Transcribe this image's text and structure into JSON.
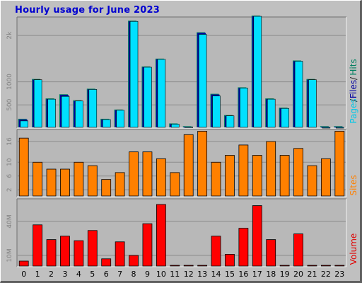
{
  "title": "Hourly usage for June 2023",
  "colors": {
    "background": "#c0c0c0",
    "plot": "#b8b8b8",
    "grid": "#8c8c8c",
    "title": "#0000d0",
    "pages": "#00e0ff",
    "files": "#0000a0",
    "hits": "#008060",
    "sites": "#ff8000",
    "volume": "#ff0000"
  },
  "legend": {
    "pages": "Pages",
    "files": "Files",
    "hits": "Hits",
    "sites": "Sites",
    "volume": "Volume",
    "slash": "/"
  },
  "chart_data": [
    {
      "type": "bar",
      "name": "hits-files-pages",
      "categories": [
        "0",
        "1",
        "2",
        "3",
        "4",
        "5",
        "6",
        "7",
        "8",
        "9",
        "10",
        "11",
        "12",
        "13",
        "14",
        "15",
        "16",
        "17",
        "18",
        "19",
        "20",
        "21",
        "22",
        "23"
      ],
      "ylim": [
        0,
        2400
      ],
      "yticks": [
        {
          "value": 500,
          "label": "500"
        },
        {
          "value": 1000,
          "label": "1000"
        },
        {
          "value": 2000,
          "label": "2k"
        }
      ],
      "series": [
        {
          "name": "Hits",
          "values": [
            200,
            1060,
            640,
            730,
            600,
            850,
            200,
            400,
            2320,
            1330,
            1500,
            100,
            40,
            2070,
            740,
            280,
            880,
            2430,
            640,
            440,
            1460,
            1060,
            40,
            40
          ]
        },
        {
          "name": "Files",
          "values": [
            200,
            1060,
            640,
            730,
            600,
            850,
            200,
            400,
            2320,
            1330,
            1500,
            100,
            40,
            2070,
            740,
            280,
            880,
            2430,
            640,
            440,
            1460,
            1060,
            40,
            40
          ]
        },
        {
          "name": "Pages",
          "values": [
            170,
            1060,
            640,
            700,
            600,
            850,
            200,
            400,
            2320,
            1330,
            1500,
            100,
            40,
            2040,
            710,
            280,
            880,
            2430,
            640,
            440,
            1460,
            1060,
            30,
            30
          ]
        }
      ]
    },
    {
      "type": "bar",
      "name": "sites",
      "categories": [
        "0",
        "1",
        "2",
        "3",
        "4",
        "5",
        "6",
        "7",
        "8",
        "9",
        "10",
        "11",
        "12",
        "13",
        "14",
        "15",
        "16",
        "17",
        "18",
        "19",
        "20",
        "21",
        "22",
        "23"
      ],
      "ylim": [
        0,
        19.5
      ],
      "yticks": [
        {
          "value": 2,
          "label": "2"
        },
        {
          "value": 6,
          "label": "6"
        },
        {
          "value": 10,
          "label": "10"
        },
        {
          "value": 16,
          "label": "16"
        }
      ],
      "series": [
        {
          "name": "Sites",
          "values": [
            17,
            10,
            8,
            8,
            10,
            9,
            5,
            7,
            13,
            13,
            11,
            7,
            18,
            19,
            10,
            12,
            15,
            12,
            16,
            12,
            14,
            9,
            11,
            19
          ]
        }
      ]
    },
    {
      "type": "bar",
      "name": "volume",
      "categories": [
        "0",
        "1",
        "2",
        "3",
        "4",
        "5",
        "6",
        "7",
        "8",
        "9",
        "10",
        "11",
        "12",
        "13",
        "14",
        "15",
        "16",
        "17",
        "18",
        "19",
        "20",
        "21",
        "22",
        "23"
      ],
      "ylim": [
        0,
        0.6
      ],
      "yticks": [
        {
          "value": 0.1,
          "label": "10M"
        },
        {
          "value": 0.4,
          "label": "40M"
        }
      ],
      "series": [
        {
          "name": "Volume",
          "values": [
            0.05,
            0.37,
            0.24,
            0.27,
            0.23,
            0.32,
            0.07,
            0.22,
            0.1,
            0.38,
            0.55,
            0.01,
            0.01,
            0.01,
            0.27,
            0.11,
            0.34,
            0.54,
            0.24,
            0.01,
            0.29,
            0.01,
            0.01,
            0.01
          ]
        }
      ]
    }
  ]
}
